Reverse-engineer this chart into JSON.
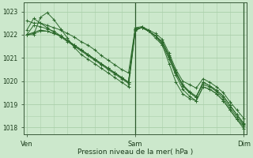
{
  "title": "",
  "xlabel": "Pression niveau de la mer( hPa )",
  "ylabel": "",
  "bg_color": "#cce8cc",
  "grid_color": "#aacfaa",
  "line_color": "#2d6a2d",
  "ylim": [
    1017.7,
    1023.4
  ],
  "yticks": [
    1018,
    1019,
    1020,
    1021,
    1022,
    1023
  ],
  "xtick_positions": [
    0,
    16,
    32
  ],
  "xtick_labels": [
    "Ven",
    "Sam",
    "Dim"
  ],
  "vline_positions": [
    16,
    32
  ],
  "total_points": 33,
  "series": [
    [
      1022.2,
      1022.7,
      1022.5,
      1022.4,
      1022.3,
      1022.2,
      1022.05,
      1021.9,
      1021.7,
      1021.55,
      1021.35,
      1021.1,
      1020.9,
      1020.7,
      1020.5,
      1020.35,
      1022.3,
      1022.35,
      1022.2,
      1022.05,
      1021.8,
      1021.2,
      1020.5,
      1020.0,
      1019.85,
      1019.7,
      1020.1,
      1019.95,
      1019.75,
      1019.5,
      1019.1,
      1018.75,
      1018.4
    ],
    [
      1022.0,
      1022.1,
      1022.2,
      1022.15,
      1022.05,
      1021.95,
      1021.75,
      1021.55,
      1021.35,
      1021.15,
      1020.95,
      1020.75,
      1020.55,
      1020.35,
      1020.15,
      1019.95,
      1022.25,
      1022.3,
      1022.15,
      1021.95,
      1021.65,
      1021.05,
      1020.35,
      1019.8,
      1019.5,
      1019.3,
      1019.95,
      1019.8,
      1019.6,
      1019.35,
      1018.95,
      1018.55,
      1018.15
    ],
    [
      1022.6,
      1022.5,
      1022.5,
      1022.3,
      1022.1,
      1021.9,
      1021.7,
      1021.5,
      1021.3,
      1021.1,
      1020.9,
      1020.7,
      1020.5,
      1020.3,
      1020.1,
      1019.9,
      1022.2,
      1022.3,
      1022.15,
      1021.95,
      1021.7,
      1021.1,
      1020.4,
      1019.85,
      1019.55,
      1019.35,
      1019.85,
      1019.75,
      1019.55,
      1019.25,
      1018.85,
      1018.45,
      1018.1
    ],
    [
      1022.0,
      1022.4,
      1022.35,
      1022.25,
      1022.15,
      1021.95,
      1021.75,
      1021.55,
      1021.35,
      1021.15,
      1020.95,
      1020.75,
      1020.55,
      1020.35,
      1020.15,
      1019.95,
      1022.25,
      1022.3,
      1022.15,
      1021.95,
      1021.65,
      1021.05,
      1020.35,
      1019.8,
      1019.5,
      1019.3,
      1019.95,
      1019.8,
      1019.6,
      1019.35,
      1018.95,
      1018.55,
      1018.2
    ],
    [
      1022.0,
      1022.0,
      1022.75,
      1022.95,
      1022.65,
      1022.25,
      1021.85,
      1021.45,
      1021.15,
      1020.95,
      1020.75,
      1020.55,
      1020.35,
      1020.15,
      1019.95,
      1019.75,
      1022.15,
      1022.35,
      1022.15,
      1021.95,
      1021.55,
      1020.75,
      1019.95,
      1019.45,
      1019.25,
      1019.15,
      1019.75,
      1019.65,
      1019.45,
      1019.15,
      1018.75,
      1018.35,
      1017.95
    ],
    [
      1022.0,
      1022.05,
      1022.15,
      1022.15,
      1022.05,
      1021.95,
      1021.75,
      1021.55,
      1021.35,
      1021.15,
      1020.95,
      1020.75,
      1020.55,
      1020.35,
      1020.15,
      1019.95,
      1022.25,
      1022.3,
      1022.15,
      1021.85,
      1021.55,
      1020.95,
      1020.25,
      1019.65,
      1019.35,
      1019.15,
      1019.75,
      1019.65,
      1019.45,
      1019.15,
      1018.75,
      1018.35,
      1018.05
    ]
  ]
}
